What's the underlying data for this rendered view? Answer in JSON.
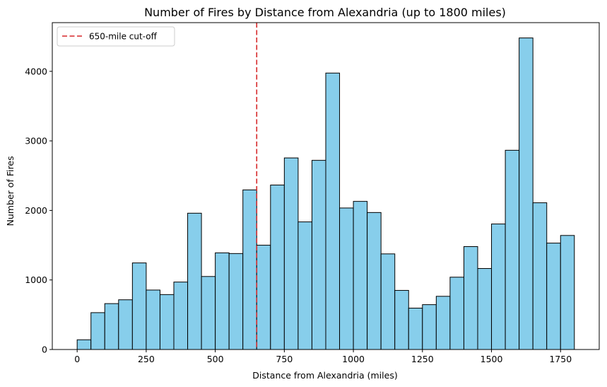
{
  "chart_data": {
    "type": "bar",
    "title": "Number of Fires by Distance from Alexandria (up to 1800 miles)",
    "xlabel": "Distance from Alexandria (miles)",
    "ylabel": "Number of Fires",
    "xlim": [
      -90,
      1890
    ],
    "ylim": [
      0,
      4700
    ],
    "bin_width": 50,
    "bin_edges_start": 0,
    "values": [
      140,
      530,
      660,
      715,
      1245,
      855,
      790,
      970,
      1960,
      1050,
      1390,
      1380,
      2295,
      1500,
      2365,
      2755,
      1835,
      2720,
      3975,
      2035,
      2130,
      1970,
      1375,
      850,
      595,
      645,
      765,
      1040,
      1480,
      1165,
      1805,
      2865,
      4480,
      2110,
      1530,
      1640
    ],
    "x_ticks": [
      0,
      250,
      500,
      750,
      1000,
      1250,
      1500,
      1750
    ],
    "x_tick_labels": [
      "0",
      "250",
      "500",
      "750",
      "1000",
      "1250",
      "1500",
      "1750"
    ],
    "y_ticks": [
      0,
      1000,
      2000,
      3000,
      4000
    ],
    "y_tick_labels": [
      "0",
      "1000",
      "2000",
      "3000",
      "4000"
    ],
    "cutoff_x": 650,
    "legend": {
      "position": "upper-left",
      "entries": [
        {
          "label": "650-mile cut-off",
          "color": "#d62728",
          "style": "dashed"
        }
      ]
    },
    "bar_color": "#87ceeb",
    "edge_color": "#000000",
    "grid": false
  }
}
